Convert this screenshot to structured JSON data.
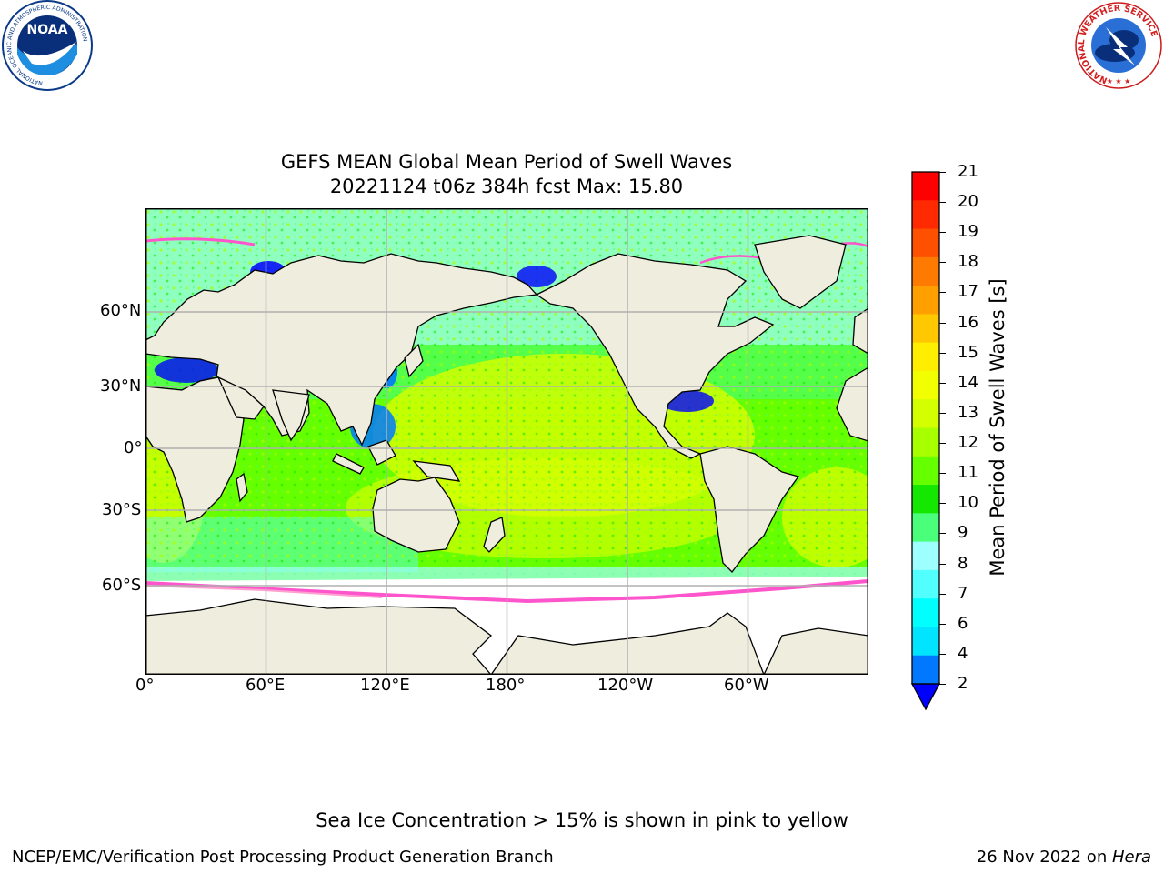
{
  "title_line1": "GEFS MEAN Global Mean Period of Swell Waves",
  "title_line2": "20221124 t06z 384h fcst   Max: 15.80",
  "x_ticks": [
    "0°",
    "60°E",
    "120°E",
    "180°",
    "120°W",
    "60°W"
  ],
  "y_ticks": [
    "60°N",
    "30°N",
    "0°",
    "30°S",
    "60°S"
  ],
  "colorbar": {
    "label": "Mean Period of Swell Waves [s]",
    "ticks": [
      "21",
      "20",
      "19",
      "18",
      "17",
      "16",
      "15",
      "14",
      "13",
      "12",
      "11",
      "10",
      "9",
      "8",
      "7",
      "6",
      "4",
      "2"
    ],
    "colors": [
      "#ff0000",
      "#ff2a00",
      "#ff5000",
      "#ff7a00",
      "#ffa000",
      "#ffc800",
      "#ffee00",
      "#f2ff00",
      "#d4ff00",
      "#a8ff00",
      "#66ff00",
      "#14e800",
      "#4aff7a",
      "#9effff",
      "#52ffff",
      "#00ffff",
      "#00e4ff",
      "#0078ff"
    ],
    "under_color": "#0000ff"
  },
  "land_color": "#efeddd",
  "sea_ice_note": "Sea Ice Concentration > 15% is shown in pink to yellow",
  "footer_left": "NCEP/EMC/Verification Post Processing Product Generation Branch",
  "footer_date": "26 Nov 2022 on ",
  "footer_machine": "Hera",
  "noaa_logo_text": "NOAA",
  "noaa_ring_text": "NATIONAL OCEANIC AND ATMOSPHERIC ADMINISTRATION",
  "noaa_ring_bottom": "U.S. DEPARTMENT OF COMMERCE",
  "nws_ring_text": "NATIONAL WEATHER SERVICE"
}
